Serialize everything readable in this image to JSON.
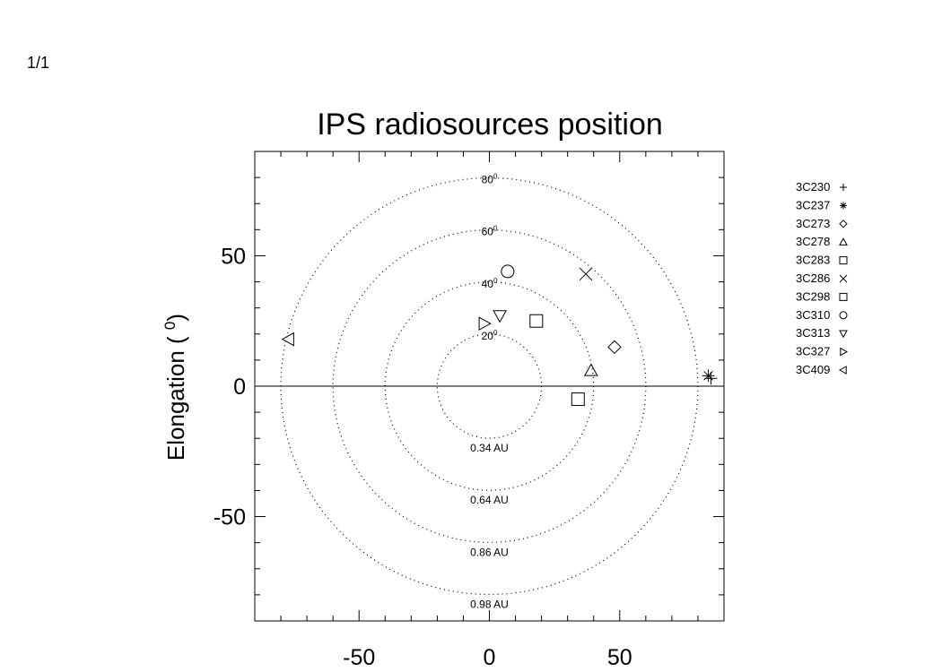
{
  "page_label": "1/1",
  "chart_data": {
    "type": "scatter",
    "title": "IPS radiosources position",
    "ylabel": "Elongation ( ",
    "ylabel_sup": "0",
    "ylabel_end": ")",
    "xlabel": "",
    "xlim": [
      -90,
      90
    ],
    "ylim": [
      -90,
      90
    ],
    "x_ticks": [
      -50,
      0,
      50
    ],
    "y_ticks": [
      -50,
      0,
      50
    ],
    "elongation_rings": [
      {
        "radius": 20,
        "angle_label": "20",
        "distance_label": "0.34 AU"
      },
      {
        "radius": 40,
        "angle_label": "40",
        "distance_label": "0.64 AU"
      },
      {
        "radius": 60,
        "angle_label": "60",
        "distance_label": "0.86 AU"
      },
      {
        "radius": 80,
        "angle_label": "80",
        "distance_label": "0.98 AU"
      }
    ],
    "degree_symbol": "0",
    "series": [
      {
        "name": "3C230",
        "marker": "plus",
        "x": 85,
        "y": 3
      },
      {
        "name": "3C237",
        "marker": "asterisk",
        "x": 84,
        "y": 4
      },
      {
        "name": "3C273",
        "marker": "diamond",
        "x": 48,
        "y": 15
      },
      {
        "name": "3C278",
        "marker": "triangle-up",
        "x": 39,
        "y": 6
      },
      {
        "name": "3C283",
        "marker": "square",
        "x": 34,
        "y": -5
      },
      {
        "name": "3C286",
        "marker": "x",
        "x": 37,
        "y": 43
      },
      {
        "name": "3C298",
        "marker": "square",
        "x": 18,
        "y": 25
      },
      {
        "name": "3C310",
        "marker": "circle",
        "x": 7,
        "y": 44
      },
      {
        "name": "3C313",
        "marker": "triangle-down",
        "x": 4,
        "y": 27
      },
      {
        "name": "3C327",
        "marker": "triangle-right",
        "x": -2,
        "y": 24
      },
      {
        "name": "3C409",
        "marker": "triangle-left",
        "x": -77,
        "y": 18
      }
    ]
  }
}
